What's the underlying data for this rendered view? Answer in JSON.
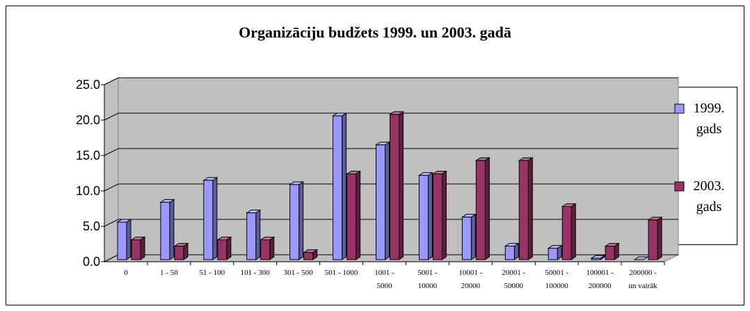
{
  "chart_data": {
    "type": "bar3d",
    "title": "Organizāciju budžets 1999. un 2003. gadā",
    "categories": [
      "0",
      "1 - 50",
      "51 - 100",
      "101 - 300",
      "301 - 500",
      "501 - 1000",
      "1001 - 5000",
      "5001 - 10000",
      "10001 - 20000",
      "20001 - 50000",
      "50001 - 100000",
      "100001 - 200000",
      "200000 - un vairāk"
    ],
    "series": [
      {
        "name": "1999. gads",
        "color": "#9999ff",
        "values": [
          5.3,
          8.1,
          11.2,
          6.6,
          10.6,
          20.3,
          16.2,
          11.9,
          6.0,
          1.9,
          1.6,
          0.2,
          0.0
        ]
      },
      {
        "name": "2003. gads",
        "color": "#993366",
        "values": [
          2.8,
          1.9,
          2.8,
          2.8,
          1.0,
          12.1,
          20.5,
          12.1,
          14.0,
          14.0,
          7.5,
          1.9,
          5.6
        ]
      }
    ],
    "ylim": [
      0,
      25
    ],
    "yticks": [
      {
        "value": 0,
        "label": "0.0"
      },
      {
        "value": 5,
        "label": "5.0"
      },
      {
        "value": 10,
        "label": "10.0"
      },
      {
        "value": 15,
        "label": "15.0"
      },
      {
        "value": 20,
        "label": "20.0"
      },
      {
        "value": 25,
        "label": "25.0"
      }
    ],
    "grid": true,
    "legend": "right"
  }
}
